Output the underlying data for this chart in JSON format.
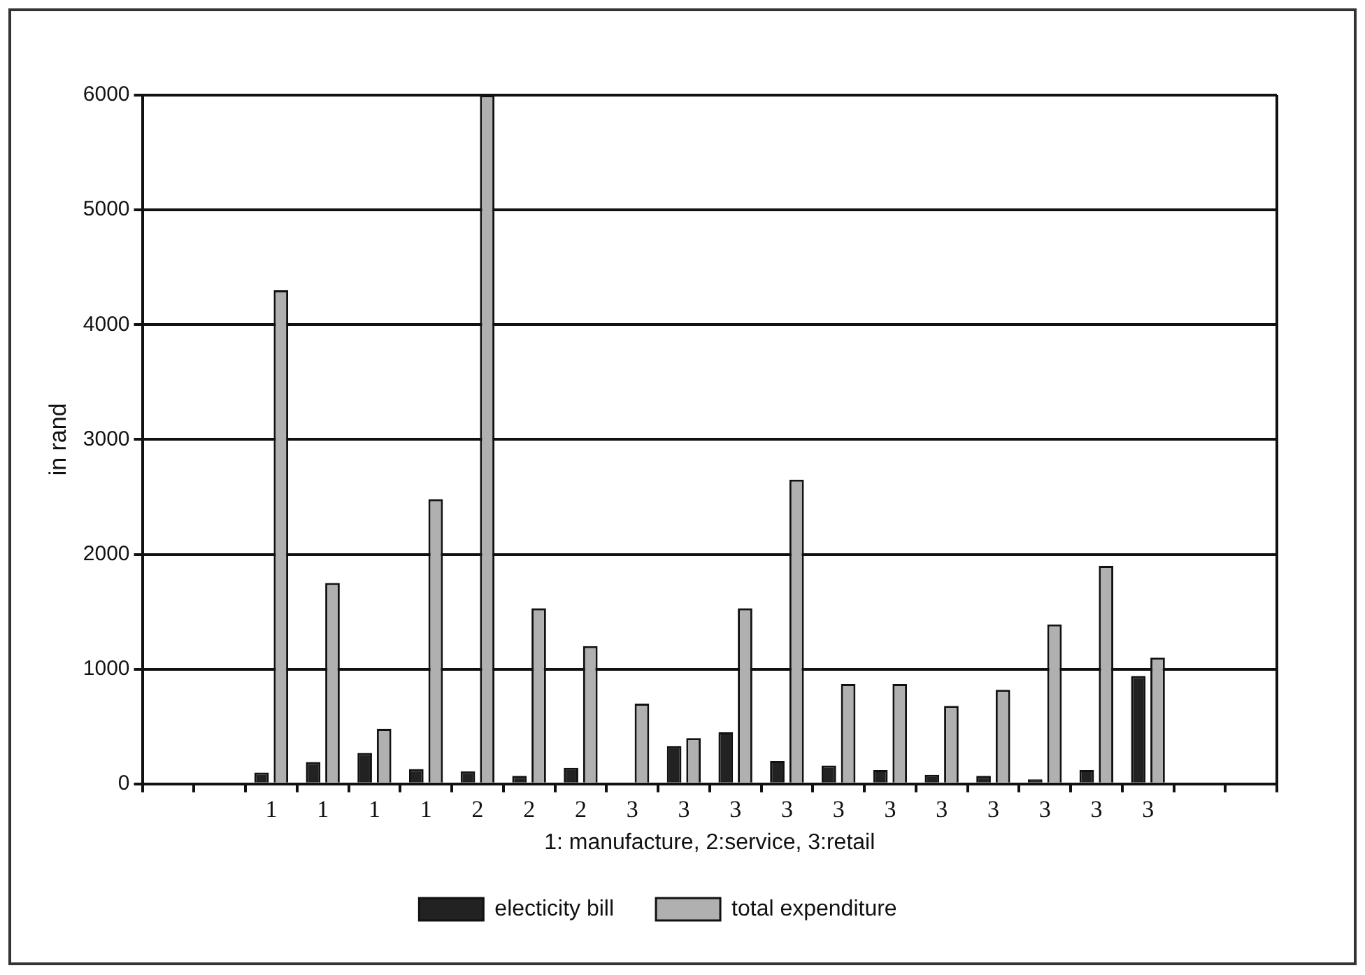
{
  "chart_data": {
    "type": "bar",
    "xlabel": "1: manufacture, 2:service, 3:retail",
    "ylabel": "in rand",
    "categories": [
      null,
      null,
      "1",
      "1",
      "1",
      "1",
      "2",
      "2",
      "2",
      "3",
      "3",
      "3",
      "3",
      "3",
      "3",
      "3",
      "3",
      "3",
      "3",
      "3",
      null,
      null
    ],
    "series": [
      {
        "name": "electicity bill",
        "color": "#222222",
        "values": [
          null,
          null,
          100,
          190,
          270,
          130,
          110,
          70,
          140,
          0,
          330,
          450,
          200,
          160,
          120,
          80,
          70,
          40,
          120,
          940,
          null,
          null
        ]
      },
      {
        "name": "total expenditure",
        "color": "#b0b0b0",
        "values": [
          null,
          null,
          4300,
          1750,
          480,
          2480,
          6000,
          1530,
          1200,
          700,
          400,
          1530,
          2650,
          870,
          870,
          680,
          820,
          1390,
          1900,
          1100,
          null,
          null
        ]
      }
    ],
    "ylim": [
      0,
      6000
    ],
    "yticks": [
      0,
      1000,
      2000,
      3000,
      4000,
      5000,
      6000
    ],
    "grid": "y",
    "legend": "bottom"
  }
}
